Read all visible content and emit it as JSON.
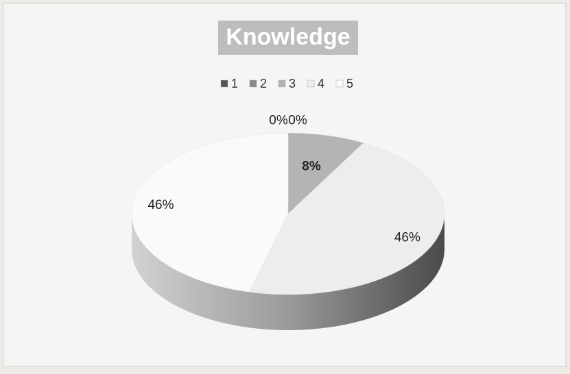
{
  "chart_data": {
    "type": "pie",
    "title": "Knowledge",
    "categories": [
      "1",
      "2",
      "3",
      "4",
      "5"
    ],
    "values": [
      0,
      0,
      8,
      46,
      46
    ],
    "value_labels": [
      "0%",
      "0%",
      "8%",
      "46%",
      "46%"
    ],
    "colors": [
      "#555555",
      "#8a8a8a",
      "#b4b4b4",
      "#ededed",
      "#fafafa"
    ],
    "legend": "top"
  }
}
